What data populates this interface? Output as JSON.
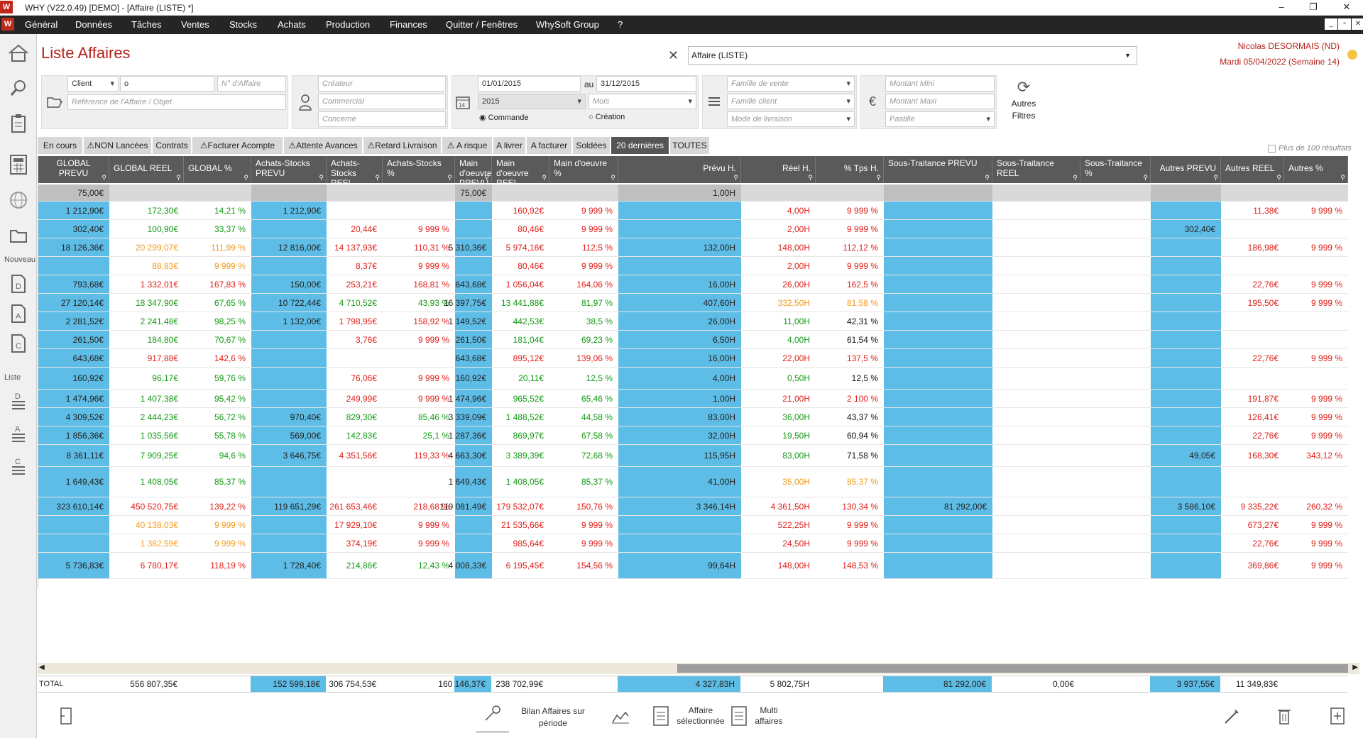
{
  "window": {
    "title": "WHY (V22.0.49)  [DEMO] - [Affaire (LISTE) *]",
    "logo": "W"
  },
  "menu": [
    "Général",
    "Données",
    "Tâches",
    "Ventes",
    "Stocks",
    "Achats",
    "Production",
    "Finances",
    "Quitter / Fenêtres",
    "WhySoft Group",
    "?"
  ],
  "sidebar": {
    "nouveau": "Nouveau",
    "liste": "Liste",
    "icons": [
      "home-icon",
      "search-icon",
      "clipboard-icon",
      "calculator-icon",
      "web-icon",
      "folder-icon"
    ]
  },
  "header": {
    "title": "Liste Affaires",
    "view": "Affaire (LISTE)",
    "user": "Nicolas DESORMAIS (ND)",
    "date": "Mardi 05/04/2022 (Semaine 14)"
  },
  "filters": {
    "tiers_type": "Client",
    "tiers_value": "o",
    "num_affaire_ph": "N° d'Affaire",
    "reference_ph": "Référence de l'Affaire / Objet",
    "createur_ph": "Créateur",
    "commercial_ph": "Commercial",
    "concerne_ph": "Concerne",
    "date_from": "01/01/2015",
    "date_to_label": "au",
    "date_to": "31/12/2015",
    "year": "2015",
    "month_ph": "Mois",
    "radio_commande": "Commande",
    "radio_creation": "Création",
    "famille_vente_ph": "Famille de vente",
    "famille_client_ph": "Famille client",
    "mode_livraison_ph": "Mode de livraison",
    "montant_mini_ph": "Montant Mini",
    "montant_maxi_ph": "Montant Maxi",
    "pastille_ph": "Pastille",
    "autres_filtres": "Autres Filtres"
  },
  "tabs": [
    {
      "label": "En cours",
      "warn": false
    },
    {
      "label": "NON Lancées",
      "warn": true
    },
    {
      "label": "Contrats",
      "warn": false
    },
    {
      "label": "Facturer Acompte",
      "warn": true
    },
    {
      "label": "Attente Avances",
      "warn": true
    },
    {
      "label": "Retard Livraison",
      "warn": true
    },
    {
      "label": "A risque",
      "warn": true
    },
    {
      "label": "A livrer",
      "warn": false
    },
    {
      "label": "A facturer",
      "warn": false
    },
    {
      "label": "Soldées",
      "warn": false
    },
    {
      "label": "20 dernières",
      "warn": false,
      "active": true
    },
    {
      "label": "TOUTES",
      "warn": false
    }
  ],
  "more_results": "Plus de 100 résultats",
  "columns": [
    "GLOBAL PREVU",
    "GLOBAL REEL",
    "GLOBAL %",
    "Achats-Stocks PREVU",
    "Achats-Stocks REEL",
    "Achats-Stocks %",
    "Main d'oeuvre PREVU",
    "Main d'oeuvre REEL",
    "Main d'oeuvre %",
    "Prévu H.",
    "Réel H.",
    "% Tps H.",
    "Sous-Traitance PREVU",
    "Sous-Traitance REEL",
    "Sous-Traitance %",
    "Autres PREVU",
    "Autres REEL",
    "Autres %"
  ],
  "colors": {
    "blue": "#5ebde6",
    "header": "#5a5a5a",
    "title": "#b5211b",
    "red": "#e0201a",
    "green": "#149a14",
    "orange": "#f39a1c"
  },
  "summary_row": [
    "75,00€",
    "",
    "",
    "",
    "",
    "",
    "75,00€",
    "",
    "",
    "1,00H",
    "",
    "",
    "",
    "",
    "",
    "",
    "",
    ""
  ],
  "rows": [
    [
      [
        "1 212,90€",
        ""
      ],
      [
        "172,30€",
        "g"
      ],
      [
        "14,21 %",
        "g"
      ],
      [
        "1 212,90€",
        ""
      ],
      [
        "",
        ""
      ],
      [
        "",
        ""
      ],
      [
        "",
        ""
      ],
      [
        "160,92€",
        "r"
      ],
      [
        "9 999 %",
        "r"
      ],
      [
        "",
        ""
      ],
      [
        "4,00H",
        "r"
      ],
      [
        "9 999 %",
        "r"
      ],
      [
        "",
        ""
      ],
      [
        "",
        ""
      ],
      [
        "",
        ""
      ],
      [
        "",
        ""
      ],
      [
        "11,38€",
        "r"
      ],
      [
        "9 999 %",
        "r"
      ]
    ],
    [
      [
        "302,40€",
        ""
      ],
      [
        "100,90€",
        "g"
      ],
      [
        "33,37 %",
        "g"
      ],
      [
        "",
        ""
      ],
      [
        "20,44€",
        "r"
      ],
      [
        "9 999 %",
        "r"
      ],
      [
        "",
        ""
      ],
      [
        "80,46€",
        "r"
      ],
      [
        "9 999 %",
        "r"
      ],
      [
        "",
        ""
      ],
      [
        "2,00H",
        "r"
      ],
      [
        "9 999 %",
        "r"
      ],
      [
        "",
        ""
      ],
      [
        "",
        ""
      ],
      [
        "",
        ""
      ],
      [
        "302,40€",
        ""
      ],
      [
        "",
        ""
      ],
      [
        "",
        ""
      ]
    ],
    [
      [
        "18 126,36€",
        ""
      ],
      [
        "20 299,07€",
        "o"
      ],
      [
        "111,99 %",
        "o"
      ],
      [
        "12 816,00€",
        ""
      ],
      [
        "14 137,93€",
        "r"
      ],
      [
        "110,31 %",
        "r"
      ],
      [
        "5 310,36€",
        ""
      ],
      [
        "5 974,16€",
        "r"
      ],
      [
        "112,5 %",
        "r"
      ],
      [
        "132,00H",
        ""
      ],
      [
        "148,00H",
        "r"
      ],
      [
        "112,12 %",
        "r"
      ],
      [
        "",
        ""
      ],
      [
        "",
        ""
      ],
      [
        "",
        ""
      ],
      [
        "",
        ""
      ],
      [
        "186,98€",
        "r"
      ],
      [
        "9 999 %",
        "r"
      ]
    ],
    [
      [
        "",
        ""
      ],
      [
        "88,83€",
        "o"
      ],
      [
        "9 999 %",
        "o"
      ],
      [
        "",
        ""
      ],
      [
        "8,37€",
        "r"
      ],
      [
        "9 999 %",
        "r"
      ],
      [
        "",
        ""
      ],
      [
        "80,46€",
        "r"
      ],
      [
        "9 999 %",
        "r"
      ],
      [
        "",
        ""
      ],
      [
        "2,00H",
        "r"
      ],
      [
        "9 999 %",
        "r"
      ],
      [
        "",
        ""
      ],
      [
        "",
        ""
      ],
      [
        "",
        ""
      ],
      [
        "",
        ""
      ],
      [
        "",
        ""
      ],
      [
        "",
        ""
      ]
    ],
    [
      [
        "793,68€",
        ""
      ],
      [
        "1 332,01€",
        "r"
      ],
      [
        "167,83 %",
        "r"
      ],
      [
        "150,00€",
        ""
      ],
      [
        "253,21€",
        "r"
      ],
      [
        "168,81 %",
        "r"
      ],
      [
        "643,68€",
        ""
      ],
      [
        "1 056,04€",
        "r"
      ],
      [
        "164,06 %",
        "r"
      ],
      [
        "16,00H",
        ""
      ],
      [
        "26,00H",
        "r"
      ],
      [
        "162,5 %",
        "r"
      ],
      [
        "",
        ""
      ],
      [
        "",
        ""
      ],
      [
        "",
        ""
      ],
      [
        "",
        ""
      ],
      [
        "22,76€",
        "r"
      ],
      [
        "9 999 %",
        "r"
      ]
    ],
    [
      [
        "27 120,14€",
        ""
      ],
      [
        "18 347,90€",
        "g"
      ],
      [
        "67,65 %",
        "g"
      ],
      [
        "10 722,44€",
        ""
      ],
      [
        "4 710,52€",
        "g"
      ],
      [
        "43,93 %",
        "g"
      ],
      [
        "16 397,75€",
        ""
      ],
      [
        "13 441,88€",
        "g"
      ],
      [
        "81,97 %",
        "g"
      ],
      [
        "407,60H",
        ""
      ],
      [
        "332,50H",
        "o"
      ],
      [
        "81,58 %",
        "o"
      ],
      [
        "",
        ""
      ],
      [
        "",
        ""
      ],
      [
        "",
        ""
      ],
      [
        "",
        ""
      ],
      [
        "195,50€",
        "r"
      ],
      [
        "9 999 %",
        "r"
      ]
    ],
    [
      [
        "2 281,52€",
        ""
      ],
      [
        "2 241,48€",
        "g"
      ],
      [
        "98,25 %",
        "g"
      ],
      [
        "1 132,00€",
        ""
      ],
      [
        "1 798,95€",
        "r"
      ],
      [
        "158,92 %",
        "r"
      ],
      [
        "1 149,52€",
        ""
      ],
      [
        "442,53€",
        "g"
      ],
      [
        "38,5 %",
        "g"
      ],
      [
        "26,00H",
        ""
      ],
      [
        "11,00H",
        "g"
      ],
      [
        "42,31 %",
        "k"
      ],
      [
        "",
        ""
      ],
      [
        "",
        ""
      ],
      [
        "",
        ""
      ],
      [
        "",
        ""
      ],
      [
        "",
        ""
      ],
      [
        "",
        ""
      ]
    ],
    [
      [
        "261,50€",
        ""
      ],
      [
        "184,80€",
        "g"
      ],
      [
        "70,67 %",
        "g"
      ],
      [
        "",
        ""
      ],
      [
        "3,76€",
        "r"
      ],
      [
        "9 999 %",
        "r"
      ],
      [
        "261,50€",
        ""
      ],
      [
        "181,04€",
        "g"
      ],
      [
        "69,23 %",
        "g"
      ],
      [
        "6,50H",
        ""
      ],
      [
        "4,00H",
        "g"
      ],
      [
        "61,54 %",
        "k"
      ],
      [
        "",
        ""
      ],
      [
        "",
        ""
      ],
      [
        "",
        ""
      ],
      [
        "",
        ""
      ],
      [
        "",
        ""
      ],
      [
        "",
        ""
      ]
    ],
    [
      [
        "643,68€",
        ""
      ],
      [
        "917,88€",
        "r"
      ],
      [
        "142,6 %",
        "r"
      ],
      [
        "",
        ""
      ],
      [
        "",
        ""
      ],
      [
        "",
        ""
      ],
      [
        "643,68€",
        ""
      ],
      [
        "895,12€",
        "r"
      ],
      [
        "139,06 %",
        "r"
      ],
      [
        "16,00H",
        ""
      ],
      [
        "22,00H",
        "r"
      ],
      [
        "137,5 %",
        "r"
      ],
      [
        "",
        ""
      ],
      [
        "",
        ""
      ],
      [
        "",
        ""
      ],
      [
        "",
        ""
      ],
      [
        "22,76€",
        "r"
      ],
      [
        "9 999 %",
        "r"
      ]
    ],
    [
      [
        "160,92€",
        ""
      ],
      [
        "96,17€",
        "g"
      ],
      [
        "59,76 %",
        "g"
      ],
      [
        "",
        ""
      ],
      [
        "76,06€",
        "r"
      ],
      [
        "9 999 %",
        "r"
      ],
      [
        "160,92€",
        ""
      ],
      [
        "20,11€",
        "g"
      ],
      [
        "12,5 %",
        "g"
      ],
      [
        "4,00H",
        ""
      ],
      [
        "0,50H",
        "g"
      ],
      [
        "12,5 %",
        "k"
      ],
      [
        "",
        ""
      ],
      [
        "",
        ""
      ],
      [
        "",
        ""
      ],
      [
        "",
        ""
      ],
      [
        "",
        ""
      ],
      [
        "",
        ""
      ]
    ],
    [
      [
        "1 474,96€",
        ""
      ],
      [
        "1 407,38€",
        "g"
      ],
      [
        "95,42 %",
        "g"
      ],
      [
        "",
        ""
      ],
      [
        "249,99€",
        "r"
      ],
      [
        "9 999 %",
        "r"
      ],
      [
        "1 474,96€",
        ""
      ],
      [
        "965,52€",
        "g"
      ],
      [
        "65,46 %",
        "g"
      ],
      [
        "1,00H",
        ""
      ],
      [
        "21,00H",
        "r"
      ],
      [
        "2 100 %",
        "r"
      ],
      [
        "",
        ""
      ],
      [
        "",
        ""
      ],
      [
        "",
        ""
      ],
      [
        "",
        ""
      ],
      [
        "191,87€",
        "r"
      ],
      [
        "9 999 %",
        "r"
      ]
    ],
    [
      [
        "4 309,52€",
        ""
      ],
      [
        "2 444,23€",
        "g"
      ],
      [
        "56,72 %",
        "g"
      ],
      [
        "970,40€",
        ""
      ],
      [
        "829,30€",
        "g"
      ],
      [
        "85,46 %",
        "g"
      ],
      [
        "3 339,09€",
        ""
      ],
      [
        "1 488,52€",
        "g"
      ],
      [
        "44,58 %",
        "g"
      ],
      [
        "83,00H",
        ""
      ],
      [
        "36,00H",
        "g"
      ],
      [
        "43,37 %",
        "k"
      ],
      [
        "",
        ""
      ],
      [
        "",
        ""
      ],
      [
        "",
        ""
      ],
      [
        "",
        ""
      ],
      [
        "126,41€",
        "r"
      ],
      [
        "9 999 %",
        "r"
      ]
    ],
    [
      [
        "1 856,36€",
        ""
      ],
      [
        "1 035,56€",
        "g"
      ],
      [
        "55,78 %",
        "g"
      ],
      [
        "569,00€",
        ""
      ],
      [
        "142,83€",
        "g"
      ],
      [
        "25,1 %",
        "g"
      ],
      [
        "1 287,36€",
        ""
      ],
      [
        "869,97€",
        "g"
      ],
      [
        "67,58 %",
        "g"
      ],
      [
        "32,00H",
        ""
      ],
      [
        "19,50H",
        "g"
      ],
      [
        "60,94 %",
        "k"
      ],
      [
        "",
        ""
      ],
      [
        "",
        ""
      ],
      [
        "",
        ""
      ],
      [
        "",
        ""
      ],
      [
        "22,76€",
        "r"
      ],
      [
        "9 999 %",
        "r"
      ]
    ],
    [
      [
        "8 361,11€",
        ""
      ],
      [
        "7 909,25€",
        "g"
      ],
      [
        "94,6 %",
        "g"
      ],
      [
        "3 646,75€",
        ""
      ],
      [
        "4 351,56€",
        "r"
      ],
      [
        "119,33 %",
        "r"
      ],
      [
        "4 663,30€",
        ""
      ],
      [
        "3 389,39€",
        "g"
      ],
      [
        "72,68 %",
        "g"
      ],
      [
        "115,95H",
        ""
      ],
      [
        "83,00H",
        "g"
      ],
      [
        "71,58 %",
        "k"
      ],
      [
        "",
        ""
      ],
      [
        "",
        ""
      ],
      [
        "",
        ""
      ],
      [
        "49,05€",
        ""
      ],
      [
        "168,30€",
        "r"
      ],
      [
        "343,12 %",
        "r"
      ]
    ],
    [
      [
        "1 649,43€",
        ""
      ],
      [
        "1 408,05€",
        "g"
      ],
      [
        "85,37 %",
        "g"
      ],
      [
        "",
        ""
      ],
      [
        "",
        ""
      ],
      [
        "",
        ""
      ],
      [
        "1 649,43€",
        ""
      ],
      [
        "1 408,05€",
        "g"
      ],
      [
        "85,37 %",
        "g"
      ],
      [
        "41,00H",
        ""
      ],
      [
        "35,00H",
        "o"
      ],
      [
        "85,37 %",
        "o"
      ],
      [
        "",
        ""
      ],
      [
        "",
        ""
      ],
      [
        "",
        ""
      ],
      [
        "",
        ""
      ],
      [
        "",
        ""
      ],
      [
        "",
        ""
      ]
    ],
    [
      [
        "323 610,14€",
        ""
      ],
      [
        "450 520,75€",
        "r"
      ],
      [
        "139,22 %",
        "r"
      ],
      [
        "119 651,29€",
        ""
      ],
      [
        "261 653,46€",
        "r"
      ],
      [
        "218,68 %",
        "r"
      ],
      [
        "119 081,49€",
        ""
      ],
      [
        "179 532,07€",
        "r"
      ],
      [
        "150,76 %",
        "r"
      ],
      [
        "3 346,14H",
        ""
      ],
      [
        "4 361,50H",
        "r"
      ],
      [
        "130,34 %",
        "r"
      ],
      [
        "81 292,00€",
        ""
      ],
      [
        "",
        ""
      ],
      [
        "",
        ""
      ],
      [
        "3 586,10€",
        ""
      ],
      [
        "9 335,22€",
        "r"
      ],
      [
        "260,32 %",
        "r"
      ]
    ],
    [
      [
        "",
        ""
      ],
      [
        "40 138,03€",
        "o"
      ],
      [
        "9 999 %",
        "o"
      ],
      [
        "",
        ""
      ],
      [
        "17 929,10€",
        "r"
      ],
      [
        "9 999 %",
        "r"
      ],
      [
        "",
        ""
      ],
      [
        "21 535,66€",
        "r"
      ],
      [
        "9 999 %",
        "r"
      ],
      [
        "",
        ""
      ],
      [
        "522,25H",
        "r"
      ],
      [
        "9 999 %",
        "r"
      ],
      [
        "",
        ""
      ],
      [
        "",
        ""
      ],
      [
        "",
        ""
      ],
      [
        "",
        ""
      ],
      [
        "673,27€",
        "r"
      ],
      [
        "9 999 %",
        "r"
      ]
    ],
    [
      [
        "",
        ""
      ],
      [
        "1 382,59€",
        "o"
      ],
      [
        "9 999 %",
        "o"
      ],
      [
        "",
        ""
      ],
      [
        "374,19€",
        "r"
      ],
      [
        "9 999 %",
        "r"
      ],
      [
        "",
        ""
      ],
      [
        "985,64€",
        "r"
      ],
      [
        "9 999 %",
        "r"
      ],
      [
        "",
        ""
      ],
      [
        "24,50H",
        "r"
      ],
      [
        "9 999 %",
        "r"
      ],
      [
        "",
        ""
      ],
      [
        "",
        ""
      ],
      [
        "",
        ""
      ],
      [
        "",
        ""
      ],
      [
        "22,76€",
        "r"
      ],
      [
        "9 999 %",
        "r"
      ]
    ],
    [
      [
        "5 736,83€",
        ""
      ],
      [
        "6 780,17€",
        "r"
      ],
      [
        "118,19 %",
        "r"
      ],
      [
        "1 728,40€",
        ""
      ],
      [
        "214,86€",
        "g"
      ],
      [
        "12,43 %",
        "g"
      ],
      [
        "4 008,33€",
        ""
      ],
      [
        "6 195,45€",
        "r"
      ],
      [
        "154,56 %",
        "r"
      ],
      [
        "99,64H",
        ""
      ],
      [
        "148,00H",
        "r"
      ],
      [
        "148,53 %",
        "r"
      ],
      [
        "",
        ""
      ],
      [
        "",
        ""
      ],
      [
        "",
        ""
      ],
      [
        "",
        ""
      ],
      [
        "369,86€",
        "r"
      ],
      [
        "9 999 %",
        "r"
      ]
    ]
  ],
  "totals": {
    "label": "TOTAL",
    "values": [
      "",
      "556 807,35€",
      "",
      "152 599,18€",
      "306 754,53€",
      "",
      "160 146,37€",
      "238 702,99€",
      "",
      "4 327,83H",
      "5 802,75H",
      "",
      "81 292,00€",
      "0,00€",
      "",
      "3 937,55€",
      "11 349,83€",
      ""
    ]
  },
  "bottom": {
    "bilan": "Bilan Affaires sur période",
    "affaire_sel": "Affaire sélectionnée",
    "multi": "Multi affaires"
  }
}
